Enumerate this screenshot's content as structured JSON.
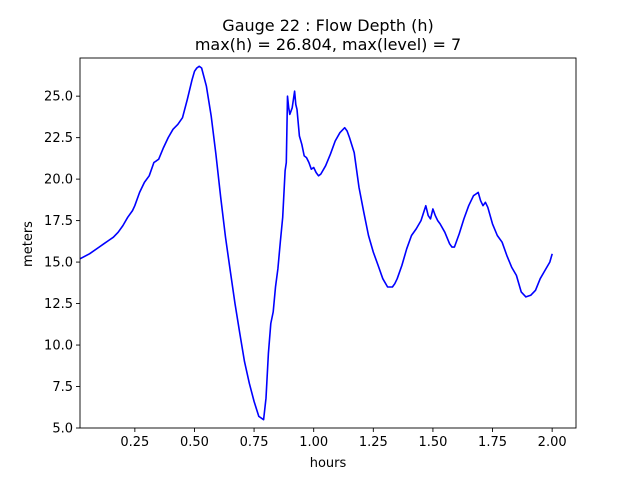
{
  "chart_data": {
    "type": "line",
    "title_line1": "Gauge 22 : Flow Depth (h)",
    "title_line2": "max(h) =  26.804,    max(level) = 7",
    "xlabel": "hours",
    "ylabel": "meters",
    "xlim": [
      0.02,
      2.1
    ],
    "ylim": [
      5.0,
      27.3
    ],
    "xticks": [
      0.25,
      0.5,
      0.75,
      1.0,
      1.25,
      1.5,
      1.75,
      2.0
    ],
    "xtick_labels": [
      "0.25",
      "0.50",
      "0.75",
      "1.00",
      "1.25",
      "1.50",
      "1.75",
      "2.00"
    ],
    "yticks": [
      5.0,
      7.5,
      10.0,
      12.5,
      15.0,
      17.5,
      20.0,
      22.5,
      25.0
    ],
    "ytick_labels": [
      "5.0",
      "7.5",
      "10.0",
      "12.5",
      "15.0",
      "17.5",
      "20.0",
      "22.5",
      "25.0"
    ],
    "grid": false,
    "series": [
      {
        "color": "#0000ff",
        "x": [
          0.02,
          0.06,
          0.1,
          0.12,
          0.14,
          0.16,
          0.18,
          0.2,
          0.22,
          0.24,
          0.25,
          0.27,
          0.29,
          0.31,
          0.33,
          0.34,
          0.35,
          0.37,
          0.39,
          0.41,
          0.43,
          0.45,
          0.47,
          0.49,
          0.5,
          0.51,
          0.52,
          0.53,
          0.55,
          0.57,
          0.59,
          0.61,
          0.63,
          0.65,
          0.67,
          0.69,
          0.71,
          0.73,
          0.75,
          0.77,
          0.79,
          0.8,
          0.81,
          0.82,
          0.83,
          0.84,
          0.85,
          0.86,
          0.87,
          0.88,
          0.885,
          0.89,
          0.895,
          0.9,
          0.91,
          0.92,
          0.925,
          0.93,
          0.94,
          0.95,
          0.96,
          0.97,
          0.98,
          0.99,
          1.0,
          1.01,
          1.02,
          1.03,
          1.05,
          1.07,
          1.09,
          1.11,
          1.13,
          1.14,
          1.15,
          1.17,
          1.19,
          1.21,
          1.23,
          1.25,
          1.27,
          1.29,
          1.31,
          1.33,
          1.34,
          1.35,
          1.37,
          1.39,
          1.41,
          1.43,
          1.45,
          1.47,
          1.48,
          1.49,
          1.5,
          1.51,
          1.52,
          1.53,
          1.55,
          1.57,
          1.58,
          1.59,
          1.61,
          1.63,
          1.65,
          1.67,
          1.68,
          1.69,
          1.7,
          1.71,
          1.72,
          1.73,
          1.75,
          1.77,
          1.79,
          1.81,
          1.83,
          1.85,
          1.87,
          1.89,
          1.91,
          1.93,
          1.95,
          1.97,
          1.99,
          2.0
        ],
        "y": [
          15.2,
          15.5,
          15.9,
          16.1,
          16.3,
          16.5,
          16.8,
          17.2,
          17.7,
          18.1,
          18.4,
          19.2,
          19.8,
          20.2,
          21.0,
          21.1,
          21.2,
          21.9,
          22.5,
          23.0,
          23.3,
          23.7,
          24.8,
          26.0,
          26.5,
          26.7,
          26.8,
          26.7,
          25.6,
          23.8,
          21.5,
          18.9,
          16.5,
          14.5,
          12.5,
          10.7,
          9.0,
          7.7,
          6.6,
          5.7,
          5.5,
          6.8,
          9.5,
          11.3,
          12.0,
          13.5,
          14.6,
          16.2,
          17.7,
          20.5,
          21.0,
          25.0,
          24.3,
          23.9,
          24.3,
          25.3,
          24.5,
          24.2,
          22.6,
          22.1,
          21.4,
          21.3,
          21.0,
          20.6,
          20.7,
          20.4,
          20.2,
          20.3,
          20.8,
          21.5,
          22.3,
          22.8,
          23.1,
          22.9,
          22.5,
          21.6,
          19.5,
          18.0,
          16.6,
          15.6,
          14.8,
          14.0,
          13.5,
          13.5,
          13.7,
          14.0,
          14.8,
          15.8,
          16.6,
          17.0,
          17.5,
          18.4,
          17.8,
          17.6,
          18.2,
          17.8,
          17.5,
          17.3,
          16.8,
          16.1,
          15.9,
          15.9,
          16.7,
          17.6,
          18.4,
          19.0,
          19.1,
          19.2,
          18.7,
          18.4,
          18.6,
          18.3,
          17.3,
          16.6,
          16.2,
          15.4,
          14.7,
          14.2,
          13.2,
          12.9,
          13.0,
          13.3,
          14.0,
          14.5,
          15.0,
          15.5
        ]
      }
    ]
  }
}
